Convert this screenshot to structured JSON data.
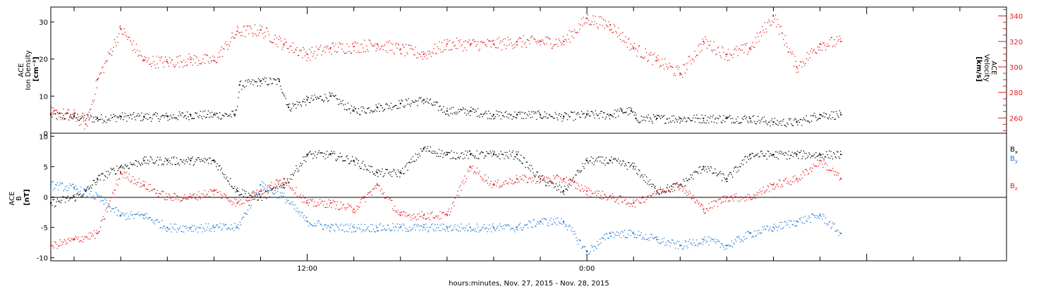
{
  "colors": {
    "black": "#000000",
    "red": "#e31a1c",
    "blue": "#1f77d4",
    "frame": "#000000"
  },
  "xaxis": {
    "label": "hours:minutes, Nov. 27, 2015 - Nov. 28, 2015",
    "tick_labels": [
      "12:00",
      "0:00"
    ]
  },
  "chart_data": [
    {
      "type": "scatter",
      "title": "",
      "left_axis_label_lines": [
        "ACE",
        "Ion Density",
        "[cm⁻³]"
      ],
      "right_axis_label_lines": [
        "ACE",
        "Velocity",
        "[km/s]"
      ],
      "x_unit": "hours since Nov. 27, 2015 00:00",
      "xlim": [
        1.0,
        42.0
      ],
      "ylim_left": [
        0,
        34
      ],
      "ylim_right": [
        248,
        347
      ],
      "left_ticks": [
        0,
        10,
        20,
        30
      ],
      "right_ticks": [
        260,
        280,
        300,
        320,
        340
      ],
      "grid": false,
      "series": [
        {
          "name": "Ion Density",
          "axis": "left",
          "color_key": "black",
          "x": [
            1.0,
            2.0,
            3.0,
            4.0,
            5.0,
            6.0,
            7.0,
            8.0,
            8.9,
            9.1,
            10.0,
            10.8,
            11.2,
            12.0,
            13.0,
            14.0,
            15.0,
            16.0,
            17.0,
            18.0,
            19.0,
            20.0,
            21.0,
            22.0,
            23.0,
            24.0,
            25.0,
            25.5,
            25.9,
            26.1,
            27.0,
            28.0,
            29.0,
            30.0,
            31.0,
            32.0,
            33.0,
            34.0,
            34.9
          ],
          "y": [
            5,
            4.5,
            4,
            4.5,
            4.5,
            4.5,
            5,
            5,
            5,
            13,
            14,
            14,
            7,
            9,
            10,
            6,
            7,
            8,
            9,
            6,
            6,
            5,
            5,
            5,
            4.5,
            5,
            5,
            6,
            6,
            4,
            4,
            4,
            4,
            4,
            4,
            3,
            3,
            5,
            5
          ]
        },
        {
          "name": "Velocity",
          "axis": "right",
          "color_key": "red",
          "x": [
            1.0,
            2.0,
            2.5,
            3.0,
            4.0,
            5.0,
            6.0,
            7.0,
            8.0,
            9.0,
            10.0,
            11.0,
            12.0,
            13.0,
            14.0,
            15.0,
            16.0,
            17.0,
            18.0,
            19.0,
            20.0,
            21.0,
            22.0,
            23.0,
            24.0,
            25.0,
            26.0,
            27.0,
            28.0,
            29.0,
            30.0,
            31.0,
            32.0,
            33.0,
            34.0,
            34.9
          ],
          "y": [
            264,
            262,
            255,
            290,
            330,
            305,
            304,
            306,
            305,
            328,
            329,
            318,
            310,
            315,
            316,
            318,
            314,
            310,
            318,
            318,
            318,
            320,
            320,
            320,
            338,
            333,
            315,
            305,
            295,
            320,
            310,
            315,
            340,
            300,
            318,
            320
          ]
        }
      ]
    },
    {
      "type": "scatter",
      "title": "",
      "left_axis_label_lines": [
        "ACE",
        "B",
        "[nT]"
      ],
      "x_unit": "hours since Nov. 27, 2015 00:00",
      "xlim": [
        1.0,
        42.0
      ],
      "ylim": [
        -10.5,
        10.5
      ],
      "yticks": [
        -10,
        -5,
        0,
        5,
        10
      ],
      "zero_line": true,
      "grid": false,
      "legend_position": "right",
      "series": [
        {
          "name": "Bx",
          "label_main": "B",
          "label_sub": "x",
          "color_key": "black",
          "x": [
            1.0,
            2.0,
            2.5,
            3.0,
            4.0,
            5.0,
            6.0,
            7.0,
            8.0,
            9.0,
            10.0,
            11.0,
            12.0,
            13.0,
            14.0,
            15.0,
            16.0,
            17.0,
            18.0,
            19.0,
            20.0,
            21.0,
            22.0,
            23.0,
            24.0,
            25.0,
            26.0,
            27.0,
            28.0,
            29.0,
            30.0,
            31.0,
            32.0,
            33.0,
            34.0,
            34.9
          ],
          "y": [
            -1,
            0,
            1,
            3,
            5,
            6,
            6,
            6,
            6,
            1,
            0,
            2,
            7,
            7,
            6,
            4,
            4,
            8,
            7,
            7,
            7,
            7,
            3,
            1,
            6,
            6,
            5,
            1,
            2,
            5,
            3,
            7,
            7,
            7,
            7,
            7
          ]
        },
        {
          "name": "By",
          "label_main": "B",
          "label_sub": "y",
          "color_key": "blue",
          "x": [
            1.0,
            2.0,
            3.0,
            4.0,
            5.0,
            6.0,
            7.0,
            8.0,
            9.0,
            10.0,
            11.0,
            12.0,
            13.0,
            14.0,
            15.0,
            16.0,
            17.0,
            18.0,
            19.0,
            20.0,
            21.0,
            22.0,
            23.0,
            24.0,
            25.0,
            26.0,
            27.0,
            28.0,
            29.0,
            30.0,
            31.0,
            32.0,
            33.0,
            34.0,
            34.9
          ],
          "y": [
            2,
            1.5,
            0,
            -3,
            -3,
            -5,
            -5,
            -5,
            -5,
            2,
            0,
            -4,
            -5,
            -5,
            -5,
            -5,
            -5,
            -5,
            -5,
            -5,
            -5,
            -4,
            -4,
            -9,
            -6,
            -6,
            -7,
            -8,
            -7,
            -8,
            -6,
            -5,
            -4,
            -3,
            -6
          ]
        },
        {
          "name": "Bz",
          "label_main": "B",
          "label_sub": "z",
          "color_key": "red",
          "x": [
            1.0,
            2.0,
            3.0,
            4.0,
            5.0,
            6.0,
            7.0,
            8.0,
            9.0,
            10.0,
            11.0,
            12.0,
            13.0,
            14.0,
            15.0,
            16.0,
            17.0,
            18.0,
            19.0,
            20.0,
            21.0,
            22.0,
            23.0,
            24.0,
            25.0,
            26.0,
            27.0,
            28.0,
            29.0,
            30.0,
            31.0,
            32.0,
            33.0,
            34.0,
            34.9
          ],
          "y": [
            -8,
            -7,
            -6,
            4,
            2,
            0,
            0,
            1,
            -1,
            1,
            3,
            -1,
            -1,
            -2,
            2,
            -3,
            -3,
            -3,
            5,
            2,
            3,
            3,
            3,
            1,
            0,
            -1,
            1,
            2,
            -2,
            0,
            0,
            2,
            3,
            6,
            3
          ]
        }
      ]
    }
  ]
}
